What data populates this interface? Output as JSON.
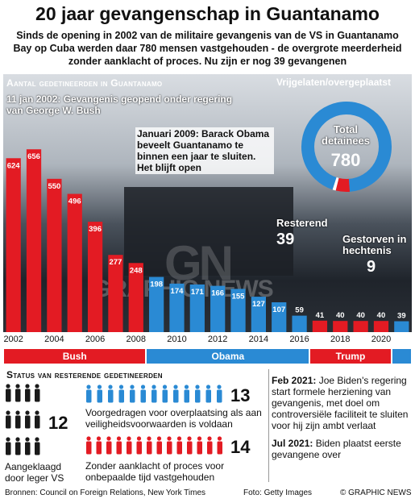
{
  "title": "20 jaar gevangenschap in Guantanamo",
  "subtitle": "Sinds de opening in 2002 van de militaire gevangenis van de VS in Guantanamo Bay op Cuba  werden daar 780 mensen vastgehouden - de overgrote meerderheid zonder aanklacht of proces. Nu zijn er nog 39 gevangenen",
  "chart_data": {
    "type": "bar",
    "title": "Aantal gedetineerden in Guantanamo",
    "categories": [
      "2002",
      "2003",
      "2004",
      "2005",
      "2006",
      "2007",
      "2008",
      "2009",
      "2010",
      "2011",
      "2012",
      "2013",
      "2014",
      "2015",
      "2016",
      "2017",
      "2018",
      "2019",
      "2020",
      "2021"
    ],
    "values": [
      624,
      656,
      550,
      496,
      396,
      277,
      248,
      198,
      174,
      171,
      166,
      155,
      127,
      107,
      59,
      41,
      40,
      40,
      40,
      39
    ],
    "x_tick_labels": [
      "2002",
      "2004",
      "2006",
      "2008",
      "2010",
      "2012",
      "2014",
      "2016",
      "2018",
      "2020"
    ],
    "ylim": [
      0,
      700
    ],
    "colors_by_president": {
      "Bush": "#e31b23",
      "Obama": "#2a8ad4",
      "Trump": "#e31b23",
      "Biden": "#2a8ad4"
    },
    "presidents": [
      {
        "name": "Bush",
        "from": "2002",
        "to": "2008",
        "color": "#e31b23"
      },
      {
        "name": "Obama",
        "from": "2009",
        "to": "2016",
        "color": "#2a8ad4"
      },
      {
        "name": "Trump",
        "from": "2017",
        "to": "2020",
        "color": "#e31b23"
      },
      {
        "name": "",
        "from": "2021",
        "to": "2021",
        "color": "#2a8ad4"
      }
    ],
    "annotations": [
      "11 jan 2002: Gevangenis geopend onder regering van George W. Bush",
      "Januari 2009: Barack Obama beveelt Guantanamo te binnen een jaar te sluiten. Het blijft open"
    ]
  },
  "donut": {
    "header": "Vrijgelaten/overgeplaatst",
    "center_label": "Total detainees",
    "center_value": "780",
    "segments": [
      {
        "name": "Vrijgelaten/overgeplaatst",
        "value": 732,
        "color": "#2a8ad4"
      },
      {
        "name": "Resterend",
        "value": 39,
        "color": "#e31b23"
      },
      {
        "name": "Gestorven in hechtenis",
        "value": 9,
        "color": "#ffffff"
      }
    ],
    "remaining_label": "Resterend",
    "remaining_value": "39",
    "died_label": "Gestorven in hechtenis",
    "died_value": "9"
  },
  "status": {
    "title": "Status van resterende gedetineerden",
    "groups": [
      {
        "count": "12",
        "text": "Aangeklaagd door leger VS",
        "color": "#1a1a1a"
      },
      {
        "count": "13",
        "text": "Voorgedragen voor overplaatsing als aan veiligheidsvoorwaarden is voldaan",
        "color": "#2a8ad4"
      },
      {
        "count": "14",
        "text": "Zonder aanklacht of proces voor onbepaalde tijd vastgehouden",
        "color": "#e31b23"
      }
    ]
  },
  "timeline": [
    {
      "date": "Feb 2021:",
      "text": "Joe Biden's regering start formele herziening van gevangenis, met doel om controversiële faciliteit te sluiten voor hij zijn ambt verlaat"
    },
    {
      "date": "Jul 2021:",
      "text": "Biden plaatst eerste gevangene over"
    }
  ],
  "footer": {
    "sources": "Bronnen: Council on Foreign Relations, New York Times",
    "photo": "Foto: Getty Images",
    "brand": "© GRAPHIC NEWS"
  },
  "watermark": "GRAPHIC NEWS"
}
